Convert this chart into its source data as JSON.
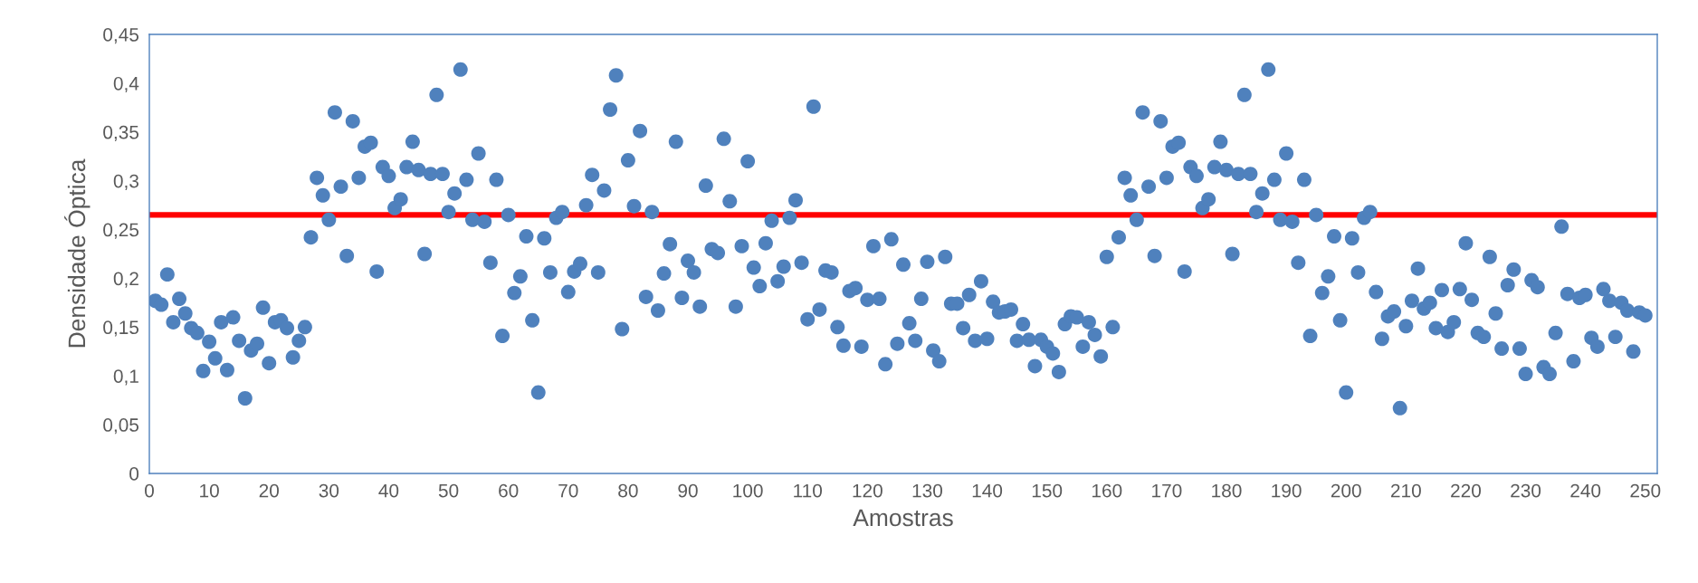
{
  "chart_data": {
    "type": "scatter",
    "xlabel": "Amostras",
    "ylabel": "Densidade Óptica",
    "marker": "circle",
    "grid": false,
    "legend": false,
    "xlim": [
      0,
      252
    ],
    "ylim": [
      0,
      0.45
    ],
    "xticks": [
      0,
      10,
      20,
      30,
      40,
      50,
      60,
      70,
      80,
      90,
      100,
      110,
      120,
      130,
      140,
      150,
      160,
      170,
      180,
      190,
      200,
      210,
      220,
      230,
      240,
      250
    ],
    "yticks": [
      0,
      {
        "value": 0.05,
        "label": "0,05"
      },
      {
        "value": 0.1,
        "label": "0,1"
      },
      {
        "value": 0.15,
        "label": "0,15"
      },
      {
        "value": 0.2,
        "label": "0,2"
      },
      {
        "value": 0.25,
        "label": "0,25"
      },
      {
        "value": 0.3,
        "label": "0,3"
      },
      {
        "value": 0.35,
        "label": "0,35"
      },
      {
        "value": 0.4,
        "label": "0,4"
      },
      {
        "value": 0.45,
        "label": "0,45"
      }
    ],
    "ref_lines": [
      {
        "axis": "y",
        "value": 0.265,
        "color": "#ff0000",
        "line_style": "solid"
      }
    ],
    "series": [
      {
        "color": "#4f81bd",
        "x": [
          1,
          2,
          3,
          4,
          5,
          6,
          7,
          8,
          9,
          10,
          11,
          12,
          13,
          14,
          15,
          16,
          17,
          18,
          19,
          20,
          21,
          22,
          23,
          24,
          25,
          26,
          27,
          28,
          29,
          30,
          31,
          32,
          33,
          34,
          35,
          36,
          37,
          38,
          39,
          40,
          41,
          42,
          43,
          44,
          45,
          46,
          47,
          48,
          49,
          50,
          51,
          52,
          53,
          54,
          55,
          56,
          57,
          58,
          59,
          60,
          61,
          62,
          63,
          64,
          65,
          66,
          67,
          68,
          69,
          70,
          71,
          72,
          73,
          74,
          75,
          76,
          77,
          78,
          79,
          80,
          81,
          82,
          83,
          84,
          85,
          86,
          87,
          88,
          89,
          90,
          91,
          92,
          93,
          94,
          95,
          96,
          97,
          98,
          99,
          100,
          101,
          102,
          103,
          104,
          105,
          106,
          107,
          108,
          109,
          110,
          111,
          112,
          113,
          114,
          115,
          116,
          117,
          118,
          119,
          120,
          121,
          122,
          123,
          124,
          125,
          126,
          127,
          128,
          129,
          130,
          131,
          132,
          133,
          134,
          135,
          136,
          137,
          138,
          139,
          140,
          141,
          142,
          143,
          144,
          145,
          146,
          147,
          148,
          149,
          150,
          151,
          152,
          153,
          154,
          155,
          156,
          157,
          158,
          159,
          160,
          161,
          162,
          163,
          164,
          165,
          166,
          167,
          168,
          169,
          170,
          171,
          172,
          173,
          174,
          175,
          176,
          177,
          178,
          179,
          180,
          181,
          182,
          183,
          184,
          185,
          186,
          187,
          188,
          189,
          190,
          191,
          192,
          193,
          194,
          195,
          196,
          197,
          198,
          199,
          200,
          201,
          202,
          203,
          204,
          205,
          206,
          207,
          208,
          209,
          210,
          211,
          212,
          213,
          214,
          215,
          216,
          217,
          218,
          219,
          220,
          221,
          222,
          223,
          224,
          225,
          226,
          227,
          228,
          229,
          230,
          231,
          232,
          233,
          234,
          235,
          236,
          237,
          238,
          239,
          240,
          241,
          242,
          243,
          244,
          245,
          246,
          247,
          248,
          249,
          250
        ],
        "values": [
          0.177,
          0.173,
          0.204,
          0.155,
          0.179,
          0.164,
          0.149,
          0.144,
          0.105,
          0.135,
          0.118,
          0.155,
          0.106,
          0.16,
          0.136,
          0.077,
          0.126,
          0.133,
          0.17,
          0.113,
          0.155,
          0.157,
          0.149,
          0.119,
          0.136,
          0.15,
          0.242,
          0.303,
          0.285,
          0.26,
          0.37,
          0.294,
          0.223,
          0.361,
          0.303,
          0.335,
          0.339,
          0.207,
          0.314,
          0.305,
          0.272,
          0.281,
          0.314,
          0.34,
          0.311,
          0.225,
          0.307,
          0.388,
          0.307,
          0.268,
          0.287,
          0.414,
          0.301,
          0.26,
          0.328,
          0.258,
          0.216,
          0.301,
          0.141,
          0.265,
          0.185,
          0.202,
          0.243,
          0.157,
          0.083,
          0.241,
          0.206,
          0.262,
          0.268,
          0.186,
          0.207,
          0.215,
          0.275,
          0.306,
          0.206,
          0.29,
          0.373,
          0.408,
          0.148,
          0.321,
          0.274,
          0.351,
          0.181,
          0.268,
          0.167,
          0.205,
          0.235,
          0.34,
          0.18,
          0.218,
          0.206,
          0.171,
          0.295,
          0.23,
          0.226,
          0.343,
          0.279,
          0.171,
          0.233,
          0.32,
          0.211,
          0.192,
          0.236,
          0.259,
          0.197,
          0.212,
          0.262,
          0.28,
          0.216,
          0.158,
          0.376,
          0.168,
          0.208,
          0.206,
          0.15,
          0.131,
          0.187,
          0.19,
          0.13,
          0.178,
          0.233,
          0.179,
          0.112,
          0.24,
          0.133,
          0.214,
          0.154,
          0.136,
          0.179,
          0.217,
          0.126,
          0.115,
          0.222,
          0.174,
          0.174,
          0.149,
          0.183,
          0.136,
          0.197,
          0.138,
          0.176,
          0.165,
          0.166,
          0.168,
          0.136,
          0.153,
          0.137,
          0.11,
          0.137,
          0.13,
          0.123,
          0.104,
          0.153,
          0.161,
          0.16,
          0.13,
          0.155,
          0.142,
          0.12,
          0.222,
          0.15,
          0.242,
          0.303,
          0.285,
          0.26,
          0.37,
          0.294,
          0.223,
          0.361,
          0.303,
          0.335,
          0.339,
          0.207,
          0.314,
          0.305,
          0.272,
          0.281,
          0.314,
          0.34,
          0.311,
          0.225,
          0.307,
          0.388,
          0.307,
          0.268,
          0.287,
          0.414,
          0.301,
          0.26,
          0.328,
          0.258,
          0.216,
          0.301,
          0.141,
          0.265,
          0.185,
          0.202,
          0.243,
          0.157,
          0.083,
          0.241,
          0.206,
          0.262,
          0.268,
          0.186,
          0.138,
          0.161,
          0.166,
          0.067,
          0.151,
          0.177,
          0.21,
          0.169,
          0.175,
          0.149,
          0.188,
          0.145,
          0.155,
          0.189,
          0.236,
          0.178,
          0.144,
          0.14,
          0.222,
          0.164,
          0.128,
          0.193,
          0.209,
          0.128,
          0.102,
          0.198,
          0.191,
          0.109,
          0.102,
          0.144,
          0.253,
          0.184,
          0.115,
          0.18,
          0.183,
          0.139,
          0.13,
          0.189,
          0.177,
          0.14,
          0.175,
          0.167,
          0.125,
          0.165,
          0.162
        ]
      }
    ]
  }
}
